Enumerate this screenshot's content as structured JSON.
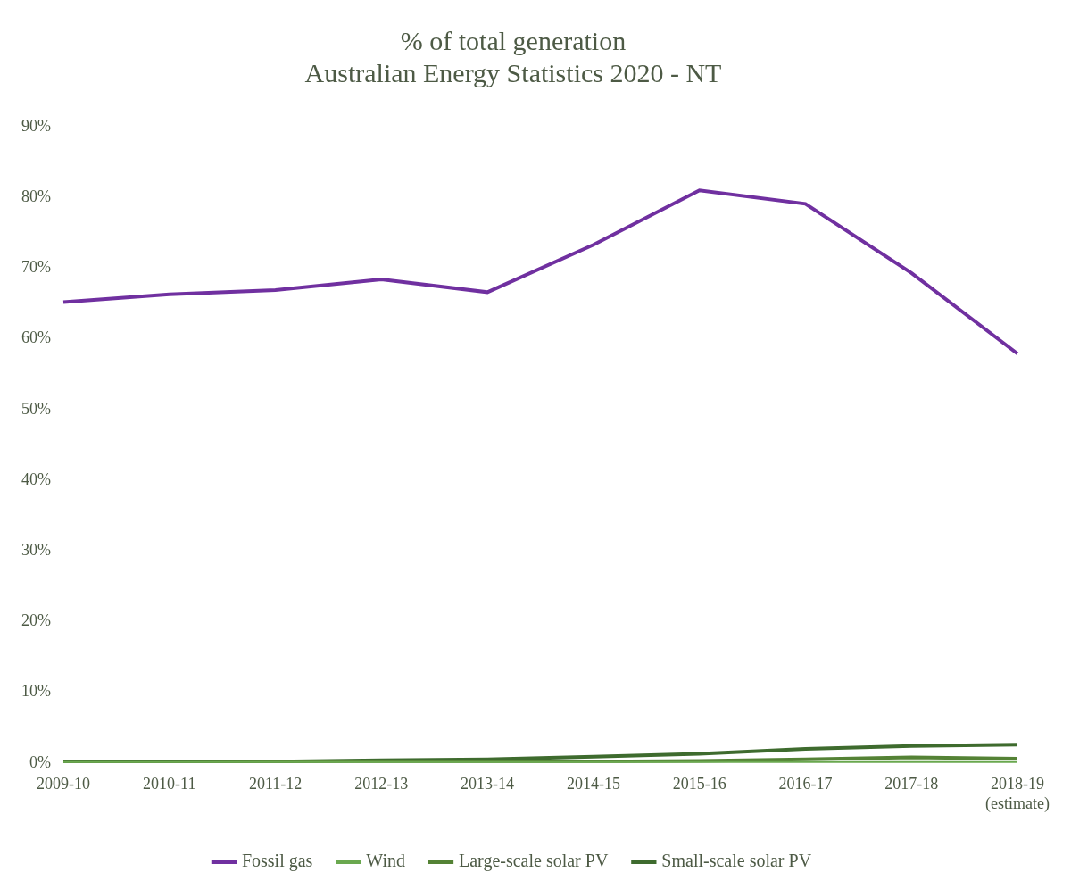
{
  "chart_data": {
    "type": "line",
    "title": [
      "% of total generation",
      "Australian Energy Statistics 2020 - NT"
    ],
    "categories": [
      "2009-10",
      "2010-11",
      "2011-12",
      "2012-13",
      "2013-14",
      "2014-15",
      "2015-16",
      "2016-17",
      "2017-18",
      [
        "2018-19",
        "(estimate)"
      ]
    ],
    "series": [
      {
        "name": "Fossil gas",
        "color": "#7030a0",
        "values": [
          65.2,
          66.3,
          66.9,
          68.4,
          66.6,
          73.3,
          81.0,
          79.1,
          69.3,
          57.9
        ]
      },
      {
        "name": "Wind",
        "color": "#6aa84f",
        "values": [
          0,
          0,
          0,
          0,
          0,
          0,
          0,
          0,
          0,
          0
        ]
      },
      {
        "name": "Large-scale solar PV",
        "color": "#548235",
        "values": [
          0,
          0,
          0.1,
          0.2,
          0.2,
          0.2,
          0.3,
          0.5,
          0.8,
          0.6
        ]
      },
      {
        "name": "Small-scale solar PV",
        "color": "#3e6b2e",
        "values": [
          0.1,
          0.1,
          0.2,
          0.4,
          0.5,
          0.9,
          1.3,
          2.0,
          2.4,
          2.6
        ]
      }
    ],
    "ylim": [
      0,
      90
    ],
    "yticks": [
      {
        "value": 0,
        "label": "0%"
      },
      {
        "value": 10,
        "label": "10%"
      },
      {
        "value": 20,
        "label": "20%"
      },
      {
        "value": 30,
        "label": "30%"
      },
      {
        "value": 40,
        "label": "40%"
      },
      {
        "value": 50,
        "label": "50%"
      },
      {
        "value": 60,
        "label": "60%"
      },
      {
        "value": 70,
        "label": "70%"
      },
      {
        "value": 80,
        "label": "80%"
      },
      {
        "value": 90,
        "label": "90%"
      }
    ],
    "grid": false,
    "legend": "bottom"
  }
}
